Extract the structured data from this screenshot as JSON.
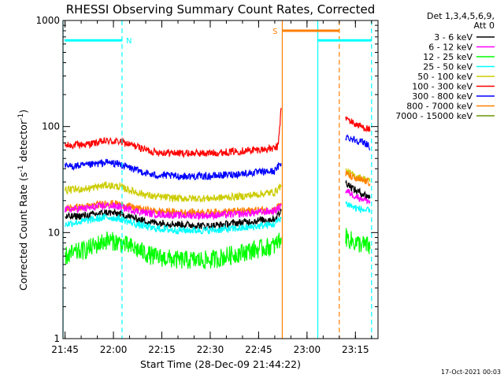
{
  "chart_data": {
    "type": "line",
    "title": "RHESSI Observing Summary Count Rates, Corrected",
    "xlabel": "Start Time (28-Dec-09 21:44:22)",
    "ylabel": "Corrected Count Rate (s^-1 detector^-1)",
    "ylabel_parts": {
      "main": "Corrected Count Rate (s",
      "sup1": "-1",
      "mid": " detector",
      "sup2": "-1",
      "end": ")"
    },
    "y_scale": "log",
    "ylim": [
      1,
      1000
    ],
    "y_ticks": [
      {
        "value": 1,
        "label": "1"
      },
      {
        "value": 10,
        "label": "10"
      },
      {
        "value": 100,
        "label": "100"
      },
      {
        "value": 1000,
        "label": "1000"
      }
    ],
    "xlim": [
      "21:44:22",
      "23:22:00"
    ],
    "x_ticks": [
      "21:45",
      "22:00",
      "22:15",
      "22:30",
      "22:45",
      "23:00",
      "23:15"
    ],
    "x_tick_times": [
      "21:45:00",
      "22:00:00",
      "22:15:00",
      "22:30:00",
      "22:45:00",
      "23:00:00",
      "23:15:00"
    ],
    "legend_header": [
      "Det 1,3,4,5,6,9,",
      "Att 0"
    ],
    "legend_position": "right",
    "series": [
      {
        "name": "3 - 6 keV",
        "color": "#000000"
      },
      {
        "name": "6 - 12 keV",
        "color": "#ff00ff"
      },
      {
        "name": "12 - 25 keV",
        "color": "#00ff00"
      },
      {
        "name": "25 - 50 keV",
        "color": "#00ffff"
      },
      {
        "name": "50 - 100 keV",
        "color": "#cccc00"
      },
      {
        "name": "100 - 300 keV",
        "color": "#ff0000"
      },
      {
        "name": "300 - 800 keV",
        "color": "#0000ff"
      },
      {
        "name": "800 - 7000 keV",
        "color": "#ff8000"
      },
      {
        "name": "7000 - 15000 keV",
        "color": "#669900"
      }
    ],
    "curves": [
      {
        "series": "100 - 300 keV",
        "color": "#ff0000",
        "segments": [
          [
            [
              "21:45:00",
              66
            ],
            [
              "21:52:00",
              68
            ],
            [
              "21:58:00",
              73
            ],
            [
              "22:02:00",
              72
            ],
            [
              "22:07:00",
              65
            ],
            [
              "22:12:00",
              58
            ],
            [
              "22:20:00",
              56
            ],
            [
              "22:30:00",
              56
            ],
            [
              "22:40:00",
              59
            ],
            [
              "22:50:00",
              62
            ],
            [
              "22:51:00",
              65
            ],
            [
              "22:52:00",
              150
            ]
          ],
          [
            [
              "23:12:00",
              120
            ],
            [
              "23:15:00",
              105
            ],
            [
              "23:19:00",
              95
            ],
            [
              "23:19:30",
              90
            ]
          ]
        ]
      },
      {
        "series": "300 - 800 keV",
        "color": "#0000ff",
        "segments": [
          [
            [
              "21:45:00",
              42
            ],
            [
              "21:52:00",
              43
            ],
            [
              "21:58:00",
              46
            ],
            [
              "22:02:00",
              44
            ],
            [
              "22:07:00",
              39
            ],
            [
              "22:12:00",
              35
            ],
            [
              "22:20:00",
              34
            ],
            [
              "22:30:00",
              34
            ],
            [
              "22:40:00",
              36
            ],
            [
              "22:50:00",
              38
            ],
            [
              "22:52:00",
              45
            ]
          ],
          [
            [
              "23:12:00",
              80
            ],
            [
              "23:15:00",
              75
            ],
            [
              "23:19:00",
              68
            ],
            [
              "23:19:30",
              60
            ]
          ]
        ]
      },
      {
        "series": "50 - 100 keV",
        "color": "#cccc00",
        "segments": [
          [
            [
              "21:45:00",
              25
            ],
            [
              "21:52:00",
              26
            ],
            [
              "21:58:00",
              28
            ],
            [
              "22:02:00",
              27
            ],
            [
              "22:07:00",
              24
            ],
            [
              "22:12:00",
              22
            ],
            [
              "22:20:00",
              21
            ],
            [
              "22:30:00",
              21
            ],
            [
              "22:40:00",
              22
            ],
            [
              "22:50:00",
              24
            ],
            [
              "22:52:00",
              28
            ]
          ],
          [
            [
              "23:12:00",
              38
            ],
            [
              "23:15:00",
              34
            ],
            [
              "23:19:00",
              31
            ],
            [
              "23:19:30",
              30
            ]
          ]
        ]
      },
      {
        "series": "800 - 7000 keV",
        "color": "#ff8000",
        "segments": [
          [
            [
              "21:45:00",
              17
            ],
            [
              "21:52:00",
              17.5
            ],
            [
              "21:58:00",
              19
            ],
            [
              "22:02:00",
              18.5
            ],
            [
              "22:07:00",
              17
            ],
            [
              "22:12:00",
              16
            ],
            [
              "22:20:00",
              15.5
            ],
            [
              "22:30:00",
              15.5
            ],
            [
              "22:40:00",
              16
            ],
            [
              "22:50:00",
              16.5
            ],
            [
              "22:52:00",
              19
            ]
          ],
          [
            [
              "23:12:00",
              36
            ],
            [
              "23:15:00",
              32
            ],
            [
              "23:19:00",
              30
            ],
            [
              "23:19:30",
              29
            ]
          ]
        ]
      },
      {
        "series": "6 - 12 keV",
        "color": "#ff00ff",
        "segments": [
          [
            [
              "21:45:00",
              16.5
            ],
            [
              "21:52:00",
              17
            ],
            [
              "21:58:00",
              18
            ],
            [
              "22:02:00",
              17.5
            ],
            [
              "22:07:00",
              16
            ],
            [
              "22:12:00",
              15
            ],
            [
              "22:20:00",
              14.5
            ],
            [
              "22:30:00",
              14.5
            ],
            [
              "22:40:00",
              15
            ],
            [
              "22:50:00",
              16
            ],
            [
              "22:52:00",
              18
            ]
          ],
          [
            [
              "23:12:00",
              25
            ],
            [
              "23:15:00",
              22
            ],
            [
              "23:19:00",
              20
            ],
            [
              "23:19:30",
              19
            ]
          ]
        ]
      },
      {
        "series": "3 - 6 keV",
        "color": "#000000",
        "segments": [
          [
            [
              "21:45:00",
              14
            ],
            [
              "21:52:00",
              14.5
            ],
            [
              "21:58:00",
              15.5
            ],
            [
              "22:02:00",
              15
            ],
            [
              "22:07:00",
              13.5
            ],
            [
              "22:12:00",
              12.5
            ],
            [
              "22:20:00",
              12
            ],
            [
              "22:30:00",
              11.5
            ],
            [
              "22:40:00",
              12.5
            ],
            [
              "22:50:00",
              13.5
            ],
            [
              "22:52:00",
              16
            ]
          ],
          [
            [
              "23:12:00",
              30
            ],
            [
              "23:15:00",
              25
            ],
            [
              "23:19:00",
              22
            ],
            [
              "23:19:30",
              21
            ]
          ]
        ]
      },
      {
        "series": "25 - 50 keV",
        "color": "#00ffff",
        "segments": [
          [
            [
              "21:45:00",
              12
            ],
            [
              "21:52:00",
              13
            ],
            [
              "21:58:00",
              14
            ],
            [
              "22:02:00",
              13.5
            ],
            [
              "22:07:00",
              12
            ],
            [
              "22:12:00",
              11
            ],
            [
              "22:20:00",
              10.5
            ],
            [
              "22:30:00",
              10.5
            ],
            [
              "22:40:00",
              11
            ],
            [
              "22:50:00",
              12
            ],
            [
              "22:52:00",
              14
            ]
          ],
          [
            [
              "23:12:00",
              19
            ],
            [
              "23:15:00",
              17
            ],
            [
              "23:19:00",
              16
            ],
            [
              "23:19:30",
              15.5
            ]
          ]
        ]
      },
      {
        "series": "12 - 25 keV",
        "color": "#00ff00",
        "segments": [
          [
            [
              "21:45:00",
              6
            ],
            [
              "21:52:00",
              7
            ],
            [
              "21:58:00",
              8.5
            ],
            [
              "22:02:00",
              8
            ],
            [
              "22:07:00",
              7
            ],
            [
              "22:12:00",
              6
            ],
            [
              "22:20:00",
              5.5
            ],
            [
              "22:30:00",
              5.5
            ],
            [
              "22:40:00",
              6.5
            ],
            [
              "22:50:00",
              7.5
            ],
            [
              "22:52:00",
              9
            ]
          ],
          [
            [
              "23:12:00",
              9
            ],
            [
              "23:15:00",
              8
            ],
            [
              "23:19:00",
              7.5
            ],
            [
              "23:19:30",
              7
            ]
          ]
        ]
      }
    ],
    "annotations": [
      {
        "type": "flag_bar",
        "label": "N",
        "color": "#00ffff",
        "start": "21:44:22",
        "end": "22:02:40",
        "value": 650
      },
      {
        "type": "flag_bar",
        "label": "S",
        "color": "#ff8000",
        "start": "22:52:20",
        "end": "23:10:00",
        "value": 800
      },
      {
        "type": "flag_bar",
        "label": "",
        "color": "#00ffff",
        "start": "23:03:20",
        "end": "23:20:00",
        "value": 650
      }
    ],
    "vertical_markers": [
      {
        "time": "21:44:22",
        "color": "#00ffff",
        "style": "solid"
      },
      {
        "time": "22:02:40",
        "color": "#00ffff",
        "style": "dashed"
      },
      {
        "time": "22:52:20",
        "color": "#ff8000",
        "style": "solid"
      },
      {
        "time": "23:03:20",
        "color": "#00ffff",
        "style": "solid"
      },
      {
        "time": "23:10:00",
        "color": "#ff8000",
        "style": "dashed"
      },
      {
        "time": "23:20:00",
        "color": "#00ffff",
        "style": "dashed"
      }
    ]
  },
  "footer_timestamp": "17-Oct-2021 00:03"
}
